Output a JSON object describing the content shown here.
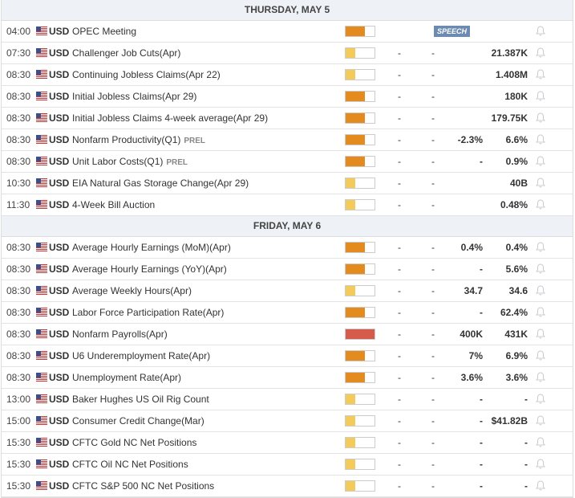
{
  "days": [
    {
      "title": "THURSDAY, MAY 5",
      "events": [
        {
          "time": "04:00",
          "currency": "USD",
          "event": "OPEC Meeting",
          "impact": "medium",
          "badge": "SPEECH",
          "actual": null,
          "deviation": null,
          "consensus": null,
          "previous": null
        },
        {
          "time": "07:30",
          "currency": "USD",
          "event": "Challenger Job Cuts(Apr)",
          "impact": "low",
          "actual": "-",
          "deviation": "-",
          "consensus": null,
          "previous": "21.387K"
        },
        {
          "time": "08:30",
          "currency": "USD",
          "event": "Continuing Jobless Claims(Apr 22)",
          "impact": "low",
          "actual": "-",
          "deviation": "-",
          "consensus": null,
          "previous": "1.408M"
        },
        {
          "time": "08:30",
          "currency": "USD",
          "event": "Initial Jobless Claims(Apr 29)",
          "impact": "medium",
          "actual": "-",
          "deviation": "-",
          "consensus": null,
          "previous": "180K"
        },
        {
          "time": "08:30",
          "currency": "USD",
          "event": "Initial Jobless Claims 4-week average(Apr 29)",
          "impact": "medium",
          "actual": "-",
          "deviation": "-",
          "consensus": null,
          "previous": "179.75K"
        },
        {
          "time": "08:30",
          "currency": "USD",
          "event": "Nonfarm Productivity(Q1)",
          "tag": "PREL",
          "impact": "medium",
          "actual": "-",
          "deviation": "-",
          "consensus": "-2.3%",
          "previous": "6.6%"
        },
        {
          "time": "08:30",
          "currency": "USD",
          "event": "Unit Labor Costs(Q1)",
          "tag": "PREL",
          "impact": "medium",
          "actual": "-",
          "deviation": "-",
          "consensus": "-",
          "previous": "0.9%"
        },
        {
          "time": "10:30",
          "currency": "USD",
          "event": "EIA Natural Gas Storage Change(Apr 29)",
          "impact": "low",
          "actual": "-",
          "deviation": "-",
          "consensus": null,
          "previous": "40B"
        },
        {
          "time": "11:30",
          "currency": "USD",
          "event": "4-Week Bill Auction",
          "impact": "low",
          "actual": "-",
          "deviation": "-",
          "consensus": null,
          "previous": "0.48%"
        }
      ]
    },
    {
      "title": "FRIDAY, MAY 6",
      "events": [
        {
          "time": "08:30",
          "currency": "USD",
          "event": "Average Hourly Earnings (MoM)(Apr)",
          "impact": "medium",
          "actual": "-",
          "deviation": "-",
          "consensus": "0.4%",
          "previous": "0.4%"
        },
        {
          "time": "08:30",
          "currency": "USD",
          "event": "Average Hourly Earnings (YoY)(Apr)",
          "impact": "medium",
          "actual": "-",
          "deviation": "-",
          "consensus": "-",
          "previous": "5.6%"
        },
        {
          "time": "08:30",
          "currency": "USD",
          "event": "Average Weekly Hours(Apr)",
          "impact": "low",
          "actual": "-",
          "deviation": "-",
          "consensus": "34.7",
          "previous": "34.6"
        },
        {
          "time": "08:30",
          "currency": "USD",
          "event": "Labor Force Participation Rate(Apr)",
          "impact": "medium",
          "actual": "-",
          "deviation": "-",
          "consensus": "-",
          "previous": "62.4%"
        },
        {
          "time": "08:30",
          "currency": "USD",
          "event": "Nonfarm Payrolls(Apr)",
          "impact": "high",
          "actual": "-",
          "deviation": "-",
          "consensus": "400K",
          "previous": "431K"
        },
        {
          "time": "08:30",
          "currency": "USD",
          "event": "U6 Underemployment Rate(Apr)",
          "impact": "medium",
          "actual": "-",
          "deviation": "-",
          "consensus": "7%",
          "previous": "6.9%"
        },
        {
          "time": "08:30",
          "currency": "USD",
          "event": "Unemployment Rate(Apr)",
          "impact": "medium",
          "actual": "-",
          "deviation": "-",
          "consensus": "3.6%",
          "previous": "3.6%"
        },
        {
          "time": "13:00",
          "currency": "USD",
          "event": "Baker Hughes US Oil Rig Count",
          "impact": "low",
          "actual": "-",
          "deviation": "-",
          "consensus": "-",
          "previous": "-"
        },
        {
          "time": "15:00",
          "currency": "USD",
          "event": "Consumer Credit Change(Mar)",
          "impact": "low",
          "actual": "-",
          "deviation": "-",
          "consensus": "-",
          "previous": "$41.82B"
        },
        {
          "time": "15:30",
          "currency": "USD",
          "event": "CFTC Gold NC Net Positions",
          "impact": "low",
          "actual": "-",
          "deviation": "-",
          "consensus": "-",
          "previous": "-"
        },
        {
          "time": "15:30",
          "currency": "USD",
          "event": "CFTC Oil NC Net Positions",
          "impact": "low",
          "actual": "-",
          "deviation": "-",
          "consensus": "-",
          "previous": "-"
        },
        {
          "time": "15:30",
          "currency": "USD",
          "event": "CFTC S&P 500 NC Net Positions",
          "impact": "low",
          "actual": "-",
          "deviation": "-",
          "consensus": "-",
          "previous": "-"
        }
      ]
    }
  ]
}
